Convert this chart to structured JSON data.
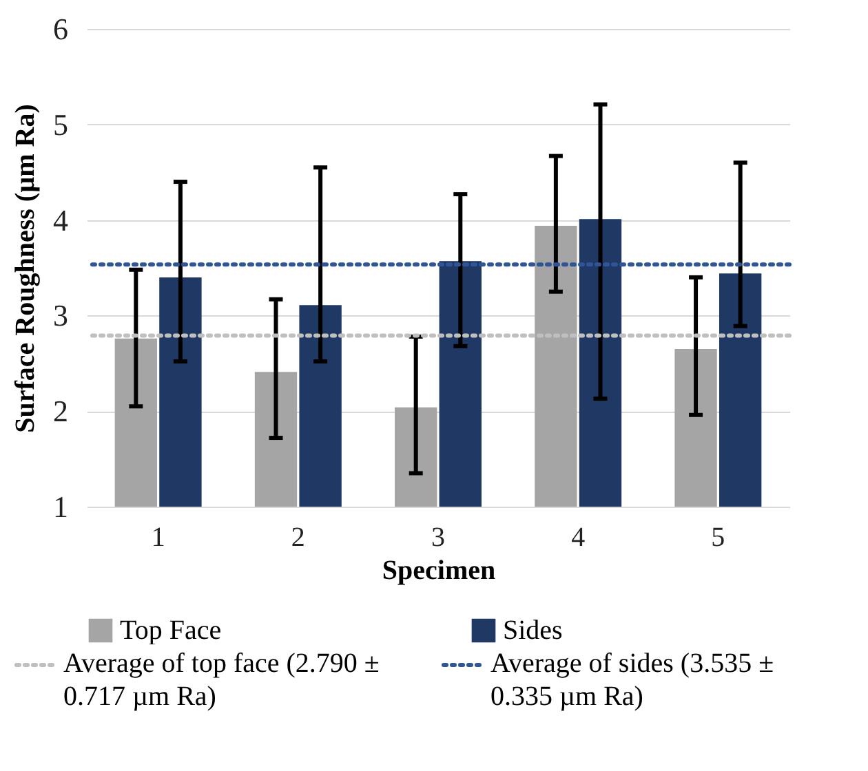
{
  "chart_data": {
    "type": "bar",
    "xlabel": "Specimen",
    "ylabel": "Surface Roughness (µm Ra)",
    "categories": [
      "1",
      "2",
      "3",
      "4",
      "5"
    ],
    "series": [
      {
        "name": "Top Face",
        "color": "#a5a5a5",
        "values": [
          2.76,
          2.41,
          2.04,
          3.94,
          2.65
        ],
        "errors": [
          [
            2.05,
            3.48
          ],
          [
            1.72,
            3.17
          ],
          [
            1.35,
            2.78
          ],
          [
            3.25,
            4.67
          ],
          [
            1.96,
            3.4
          ]
        ]
      },
      {
        "name": "Sides",
        "color": "#203864",
        "values": [
          3.4,
          3.11,
          3.57,
          4.01,
          3.44
        ],
        "errors": [
          [
            2.52,
            4.4
          ],
          [
            2.52,
            4.55
          ],
          [
            2.68,
            4.27
          ],
          [
            2.13,
            5.21
          ],
          [
            2.89,
            4.6
          ]
        ]
      }
    ],
    "ylim": [
      1,
      6
    ],
    "yticks": [
      1,
      2,
      3,
      4,
      5,
      6
    ],
    "grid": "y",
    "legend": "bottom",
    "ref_lines": [
      {
        "axis": "y",
        "value": 2.79,
        "label": "Average of top face (2.790 ± 0.717 µm Ra)",
        "color": "#bfbfbf",
        "line_style": "dotted"
      },
      {
        "axis": "y",
        "value": 3.535,
        "label": "Average of sides (3.535 ± 0.335 µm Ra)",
        "color": "#2f5597",
        "line_style": "dotted"
      }
    ]
  }
}
